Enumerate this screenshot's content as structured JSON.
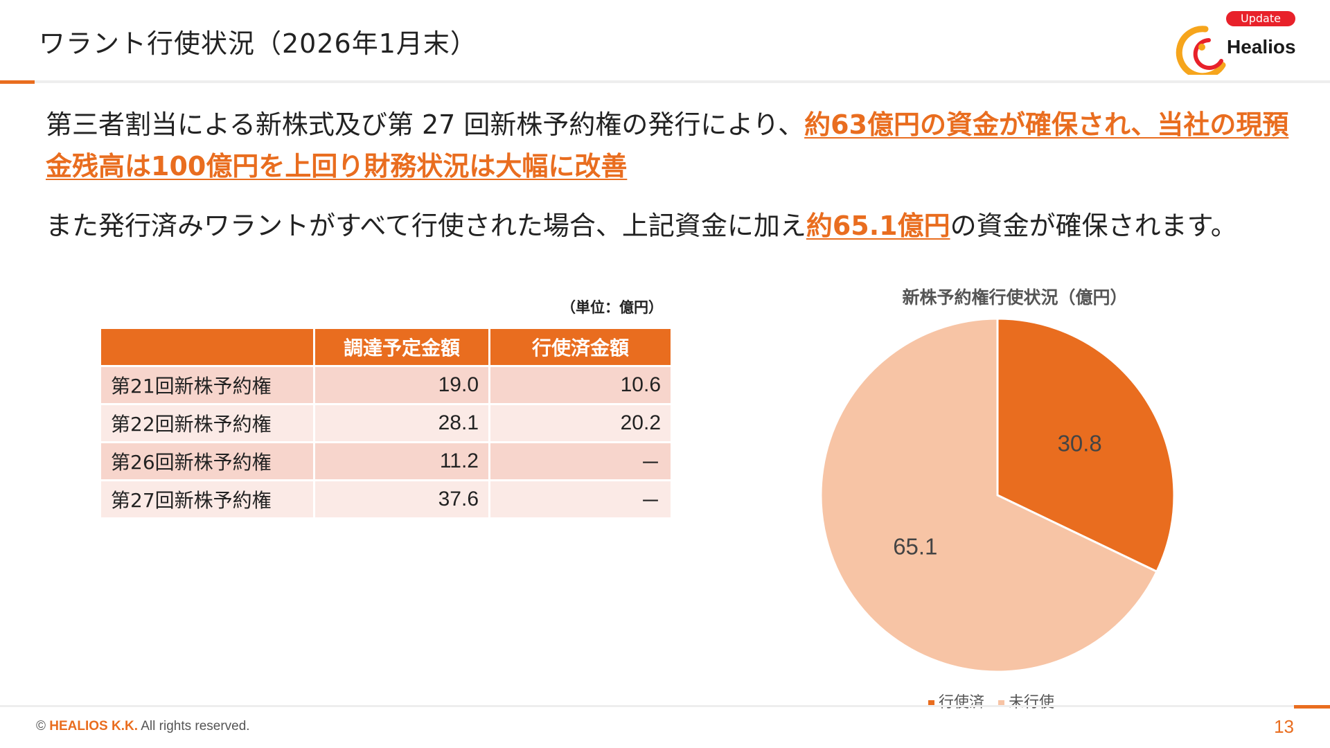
{
  "header": {
    "title": "ワラント行使状況（2026年1月末）",
    "badge": "Update",
    "logo_text": "Healios",
    "accent_color": "#e96d1f",
    "badge_color": "#e8212a"
  },
  "body": {
    "para1_prefix": "第三者割当による新株式及び第 27 回新株予約権の発行により、",
    "para1_highlight": "約63億円の資金が確保され、当社の現預金残高は100億円を上回り財務状況は大幅に改善",
    "para2_prefix": "また発行済みワラントがすべて行使された場合、上記資金に加え",
    "para2_highlight": "約65.1億円",
    "para2_suffix": "の資金が確保されます。"
  },
  "table": {
    "unit": "（単位：億円）",
    "headers": [
      "",
      "調達予定金額",
      "行使済金額"
    ],
    "rows": [
      {
        "name": "第21回新株予約権",
        "planned": "19.0",
        "exercised": "10.6"
      },
      {
        "name": "第22回新株予約権",
        "planned": "28.1",
        "exercised": "20.2"
      },
      {
        "name": "第26回新株予約権",
        "planned": "11.2",
        "exercised": "－"
      },
      {
        "name": "第27回新株予約権",
        "planned": "37.6",
        "exercised": "－"
      }
    ]
  },
  "chart_data": {
    "type": "pie",
    "title": "新株予約権行使状況（億円）",
    "categories": [
      "行使済",
      "未行使"
    ],
    "values": [
      30.8,
      65.1
    ],
    "colors": [
      "#e96d1f",
      "#f7c4a5"
    ],
    "legend_position": "bottom"
  },
  "footer": {
    "copyright_prefix": "©",
    "company": "HEALIOS K.K.",
    "copyright_suffix": "All rights reserved.",
    "page_number": "13"
  }
}
